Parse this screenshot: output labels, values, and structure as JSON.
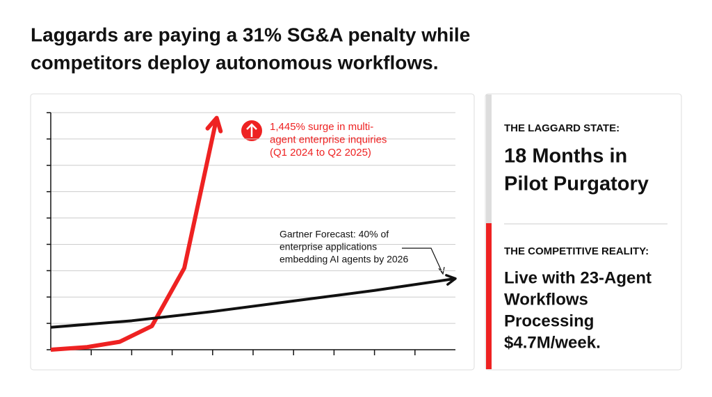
{
  "title": [
    "Laggards are paying a 31% SG&A penalty while",
    "competitors deploy autonomous workflows."
  ],
  "chart_data": {
    "type": "line",
    "xlim": [
      0,
      10
    ],
    "xticks": [
      1,
      2,
      3,
      4,
      5,
      6,
      7,
      8,
      9
    ],
    "ylim": [
      0,
      9
    ],
    "yticks": [
      0,
      1,
      2,
      3,
      4,
      5,
      6,
      7,
      8,
      9
    ],
    "grid": true,
    "series": [
      {
        "color": "#ee2222",
        "x": [
          0,
          0.9,
          1.7,
          2.5,
          3.3,
          4.1
        ],
        "values": [
          0,
          0.1,
          0.3,
          0.9,
          3.1,
          8.8
        ]
      },
      {
        "color": "#111111",
        "x": [
          0,
          2,
          4,
          6,
          8,
          10
        ],
        "values": [
          0.85,
          1.1,
          1.45,
          1.85,
          2.25,
          2.7
        ]
      }
    ],
    "annotations": [
      {
        "color": "#ee2222",
        "lines": [
          "1,445% surge in multi-",
          "agent enterprise inquiries",
          "(Q1 2024 to Q2 2025)"
        ]
      },
      {
        "color": "#111111",
        "lines": [
          "Gartner Forecast: 40% of",
          "enterprise applications",
          "embedding AI agents by 2026"
        ]
      }
    ]
  },
  "sidebar": {
    "laggard": {
      "heading": "THE LAGGARD STATE:",
      "lines": [
        "18 Months in",
        "Pilot Purgatory"
      ]
    },
    "competitive": {
      "heading": "THE COMPETITIVE REALITY:",
      "lines": [
        "Live with 23-Agent",
        "Workflows",
        "Processing",
        "$4.7M/week."
      ]
    }
  }
}
